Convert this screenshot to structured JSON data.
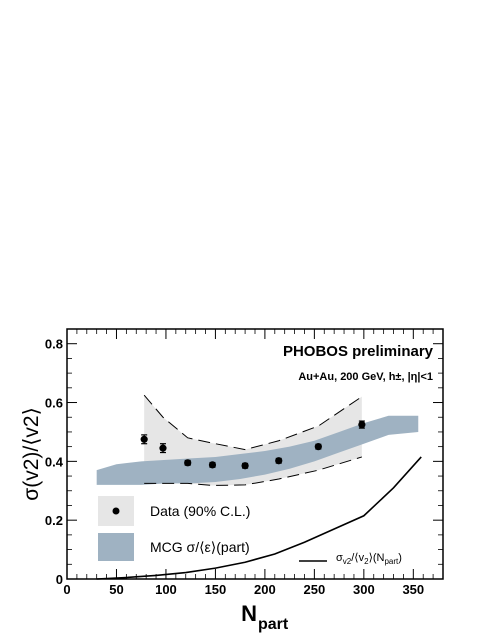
{
  "chart_data": {
    "type": "scatter",
    "title": "PHOBOS preliminary",
    "subtitle": "Au+Au, 200 GeV, h±, |η|<1",
    "xlabel": {
      "main": "N",
      "sub": "part"
    },
    "ylabel": {
      "text": "σ(v2)/⟨v2⟩"
    },
    "xlim": [
      0,
      380
    ],
    "ylim": [
      0,
      0.85
    ],
    "x_ticks": [
      0,
      50,
      100,
      150,
      200,
      250,
      300,
      350
    ],
    "y_ticks": [
      0,
      0.2,
      0.4,
      0.6,
      0.8
    ],
    "x_tick_labels": [
      "0",
      "50",
      "100",
      "150",
      "200",
      "250",
      "300",
      "350"
    ],
    "y_tick_labels": [
      "0",
      "0.2",
      "0.4",
      "0.6",
      "0.8"
    ],
    "grid": false,
    "legend_position": "bottom-left",
    "series": [
      {
        "name": "Data (90% C.L.)",
        "kind": "points_with_band",
        "color": "#000000",
        "band_color": "#e6e6e6",
        "x": [
          78,
          97,
          122,
          147,
          180,
          214,
          254,
          298
        ],
        "y": [
          0.475,
          0.445,
          0.395,
          0.388,
          0.385,
          0.402,
          0.45,
          0.525
        ],
        "yerr": [
          0.015,
          0.015,
          0.008,
          0.008,
          0.008,
          0.008,
          0.008,
          0.012
        ],
        "band_x": [
          78,
          97,
          122,
          147,
          180,
          214,
          254,
          298
        ],
        "band_upper": [
          0.625,
          0.55,
          0.48,
          0.462,
          0.44,
          0.47,
          0.52,
          0.62
        ],
        "band_lower": [
          0.325,
          0.325,
          0.325,
          0.318,
          0.32,
          0.34,
          0.37,
          0.415
        ]
      },
      {
        "name": "MCG σ/⟨ε⟩(part)",
        "kind": "band",
        "color": "#9fb2c2",
        "band_x": [
          30,
          50,
          75,
          100,
          125,
          150,
          175,
          200,
          225,
          250,
          275,
          300,
          325,
          355
        ],
        "band_upper": [
          0.37,
          0.39,
          0.4,
          0.405,
          0.41,
          0.415,
          0.425,
          0.435,
          0.45,
          0.47,
          0.5,
          0.53,
          0.555,
          0.555
        ],
        "band_lower": [
          0.32,
          0.32,
          0.32,
          0.325,
          0.325,
          0.33,
          0.34,
          0.355,
          0.375,
          0.4,
          0.43,
          0.46,
          0.49,
          0.5
        ]
      },
      {
        "name": "σv2/⟨v2⟩(Npart)",
        "label": {
          "sigma_sub": "v2",
          "mid": "/⟨v",
          "mid_sub": "2",
          "tail": "⟩(N",
          "tail_sub": "part",
          "close": ")"
        },
        "kind": "line",
        "color": "#000000",
        "x": [
          30,
          60,
          90,
          120,
          150,
          180,
          210,
          240,
          270,
          300,
          330,
          358
        ],
        "y": [
          0.0,
          0.005,
          0.012,
          0.022,
          0.037,
          0.057,
          0.085,
          0.125,
          0.17,
          0.215,
          0.31,
          0.415
        ]
      }
    ]
  }
}
